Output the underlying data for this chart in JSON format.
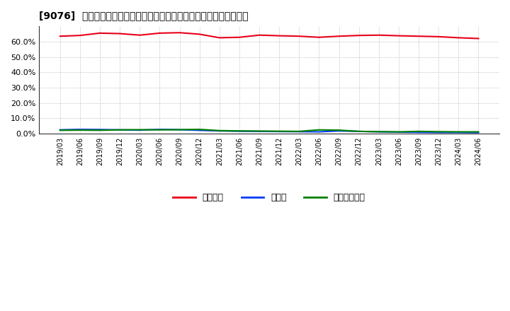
{
  "title": "[9076]  自己資本、のれん、繰延税金資産の総資産に対する比率の推移",
  "x_labels": [
    "2019/03",
    "2019/06",
    "2019/09",
    "2019/12",
    "2020/03",
    "2020/06",
    "2020/09",
    "2020/12",
    "2021/03",
    "2021/06",
    "2021/09",
    "2021/12",
    "2022/03",
    "2022/06",
    "2022/09",
    "2022/12",
    "2023/03",
    "2023/06",
    "2023/09",
    "2023/12",
    "2024/03",
    "2024/06"
  ],
  "jikoshihon": [
    63.5,
    64.0,
    65.5,
    65.2,
    64.2,
    65.5,
    65.8,
    64.8,
    62.5,
    62.8,
    64.2,
    63.8,
    63.5,
    62.8,
    63.5,
    64.0,
    64.2,
    63.8,
    63.5,
    63.2,
    62.5,
    62.0
  ],
  "noren": [
    2.5,
    2.8,
    2.7,
    2.5,
    2.3,
    2.8,
    2.6,
    2.2,
    1.8,
    1.6,
    1.5,
    1.4,
    1.3,
    1.2,
    1.8,
    1.5,
    1.2,
    1.0,
    0.9,
    0.8,
    0.8,
    0.7
  ],
  "kurinobe": [
    2.2,
    2.3,
    2.2,
    2.5,
    2.6,
    2.5,
    2.6,
    2.8,
    2.0,
    1.8,
    1.7,
    1.6,
    1.5,
    2.5,
    2.3,
    1.5,
    1.3,
    1.2,
    1.5,
    1.3,
    1.2,
    1.2
  ],
  "jikoshihon_color": "#e8001a",
  "noren_color": "#003cfa",
  "kurinobe_color": "#008000",
  "background_color": "#ffffff",
  "plot_bg_color": "#ffffff",
  "grid_color": "#aaaaaa",
  "ylim": [
    0,
    70
  ],
  "yticks": [
    0,
    10,
    20,
    30,
    40,
    50,
    60
  ],
  "legend_labels": [
    "自己資本",
    "のれん",
    "繰延税金資産"
  ]
}
